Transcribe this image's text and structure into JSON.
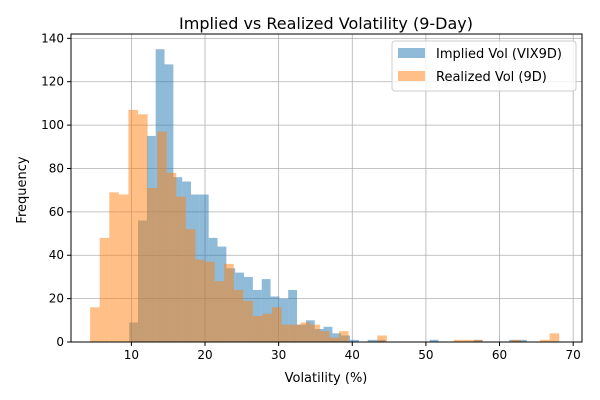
{
  "chart_data": {
    "type": "histogram",
    "title": "Implied vs Realized Volatility (9-Day)",
    "xlabel": "Volatility (%)",
    "ylabel": "Frequency",
    "xlim": [
      1.8,
      71.2
    ],
    "ylim": [
      0,
      142
    ],
    "xticks": [
      10,
      20,
      30,
      40,
      50,
      60,
      70
    ],
    "yticks": [
      0,
      20,
      40,
      60,
      80,
      100,
      120,
      140
    ],
    "grid": true,
    "legend_position": "top-right",
    "series": [
      {
        "name": "Implied Vol (VIX9D)",
        "color": "#1f77b4",
        "alpha": 0.5,
        "bins": [
          [
            9.7,
            10.9,
            9
          ],
          [
            10.9,
            12.1,
            56
          ],
          [
            12.1,
            13.3,
            95
          ],
          [
            13.3,
            14.5,
            135
          ],
          [
            14.5,
            15.7,
            128
          ],
          [
            15.7,
            16.9,
            76
          ],
          [
            16.9,
            18.1,
            74
          ],
          [
            18.1,
            19.3,
            68
          ],
          [
            19.3,
            20.5,
            68
          ],
          [
            20.5,
            21.7,
            48
          ],
          [
            21.7,
            22.9,
            44
          ],
          [
            22.9,
            24.1,
            34
          ],
          [
            24.1,
            25.3,
            32
          ],
          [
            25.3,
            26.5,
            30
          ],
          [
            26.5,
            27.7,
            24
          ],
          [
            27.7,
            28.9,
            29
          ],
          [
            28.9,
            30.1,
            21
          ],
          [
            30.1,
            31.3,
            20
          ],
          [
            31.3,
            32.5,
            24
          ],
          [
            32.5,
            33.7,
            8
          ],
          [
            33.7,
            34.9,
            10
          ],
          [
            34.9,
            36.1,
            6
          ],
          [
            36.1,
            37.3,
            7
          ],
          [
            37.3,
            38.5,
            4
          ],
          [
            38.5,
            39.7,
            3
          ],
          [
            39.7,
            40.9,
            1
          ],
          [
            40.9,
            42.1,
            0
          ],
          [
            42.1,
            43.3,
            1
          ],
          [
            43.3,
            44.5,
            1
          ],
          [
            44.5,
            45.7,
            0
          ],
          [
            45.7,
            46.9,
            0
          ],
          [
            46.9,
            48.1,
            0
          ],
          [
            48.1,
            49.3,
            0
          ],
          [
            49.3,
            50.5,
            0
          ],
          [
            50.5,
            51.7,
            1
          ],
          [
            51.7,
            52.9,
            0
          ],
          [
            52.9,
            54.1,
            0
          ],
          [
            54.1,
            55.3,
            0
          ],
          [
            55.3,
            56.5,
            0
          ],
          [
            56.5,
            57.7,
            1
          ],
          [
            57.7,
            58.9,
            0
          ],
          [
            58.9,
            60.1,
            0
          ],
          [
            60.1,
            61.3,
            0
          ],
          [
            61.3,
            62.5,
            1
          ],
          [
            62.5,
            63.7,
            1
          ],
          [
            63.7,
            64.9,
            0
          ],
          [
            64.9,
            66.1,
            0
          ],
          [
            66.1,
            67.3,
            0
          ]
        ]
      },
      {
        "name": "Realized Vol (9D)",
        "color": "#ff7f0e",
        "alpha": 0.5,
        "bins": [
          [
            4.4,
            5.7,
            16
          ],
          [
            5.7,
            7.0,
            48
          ],
          [
            7.0,
            8.3,
            69
          ],
          [
            8.3,
            9.6,
            68
          ],
          [
            9.6,
            10.9,
            107
          ],
          [
            10.9,
            12.2,
            105
          ],
          [
            12.2,
            13.5,
            71
          ],
          [
            13.5,
            14.8,
            97
          ],
          [
            14.8,
            16.1,
            78
          ],
          [
            16.1,
            17.4,
            67
          ],
          [
            17.4,
            18.7,
            52
          ],
          [
            18.7,
            20.0,
            38
          ],
          [
            20.0,
            21.3,
            37
          ],
          [
            21.3,
            22.6,
            28
          ],
          [
            22.6,
            23.9,
            36
          ],
          [
            23.9,
            25.2,
            24
          ],
          [
            25.2,
            26.5,
            19
          ],
          [
            26.5,
            27.8,
            12
          ],
          [
            27.8,
            29.1,
            13
          ],
          [
            29.1,
            30.4,
            16
          ],
          [
            30.4,
            31.7,
            8
          ],
          [
            31.7,
            33.0,
            8
          ],
          [
            33.0,
            34.3,
            9
          ],
          [
            34.3,
            35.6,
            8
          ],
          [
            35.6,
            36.9,
            5
          ],
          [
            36.9,
            38.2,
            2
          ],
          [
            38.2,
            39.5,
            5
          ],
          [
            39.5,
            40.8,
            0
          ],
          [
            40.8,
            42.1,
            0
          ],
          [
            42.1,
            43.4,
            0
          ],
          [
            43.4,
            44.7,
            3
          ],
          [
            44.7,
            46.0,
            0
          ],
          [
            46.0,
            47.3,
            0
          ],
          [
            47.3,
            48.6,
            0
          ],
          [
            48.6,
            49.9,
            0
          ],
          [
            49.9,
            51.2,
            0
          ],
          [
            51.2,
            52.5,
            0
          ],
          [
            52.5,
            53.8,
            0
          ],
          [
            53.8,
            55.1,
            1
          ],
          [
            55.1,
            56.4,
            1
          ],
          [
            56.4,
            57.7,
            1
          ],
          [
            57.7,
            59.0,
            0
          ],
          [
            59.0,
            60.3,
            0
          ],
          [
            60.3,
            61.6,
            0
          ],
          [
            61.6,
            62.9,
            1
          ],
          [
            62.9,
            64.2,
            0
          ],
          [
            64.2,
            65.5,
            0
          ],
          [
            65.5,
            66.8,
            1
          ],
          [
            66.8,
            68.1,
            4
          ]
        ]
      }
    ]
  }
}
